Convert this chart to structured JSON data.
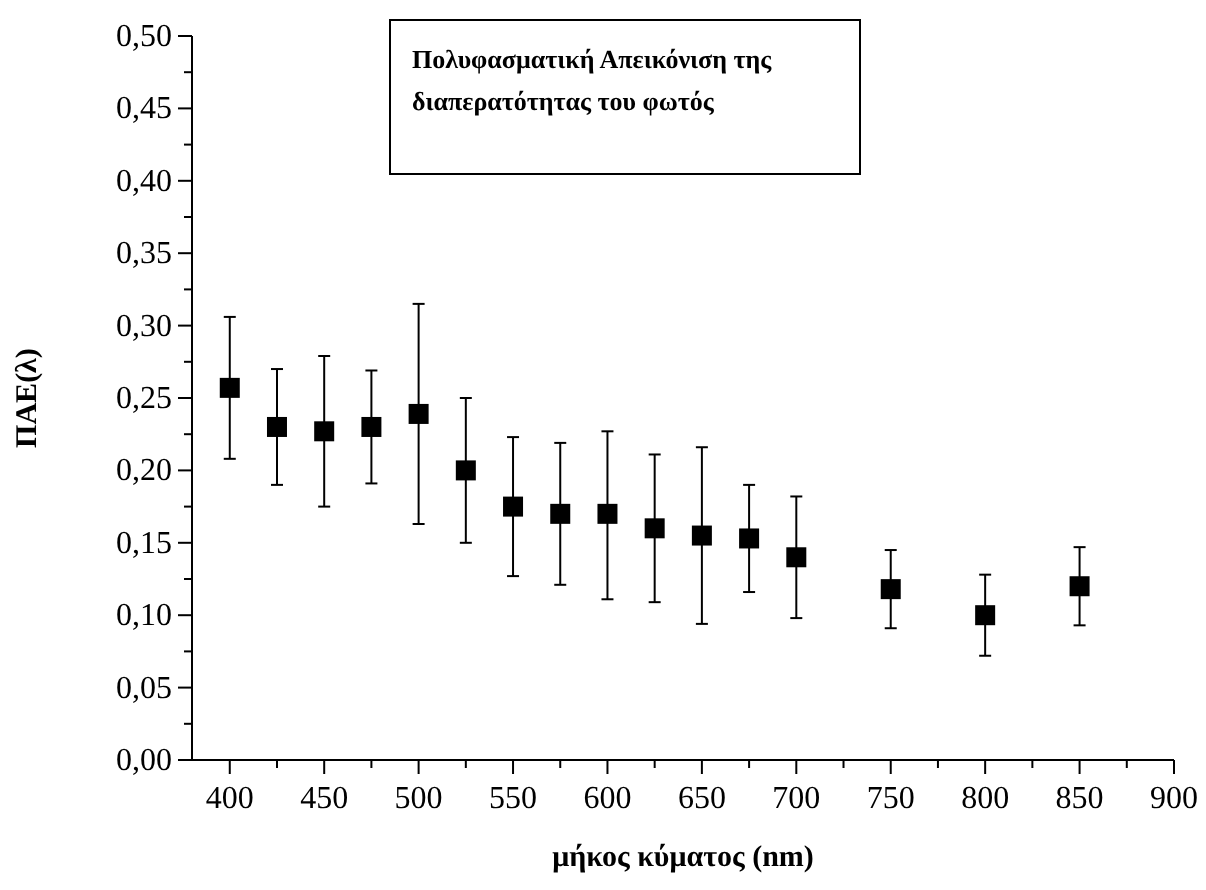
{
  "chart_data": {
    "type": "scatter",
    "title": "Πολυφασματική Απεικόνιση της διαπερατότητας του φωτός",
    "xlabel": "μήκος κύματος (nm)",
    "ylabel": "ΠΑΕ(λ)",
    "x": [
      400,
      425,
      450,
      475,
      500,
      525,
      550,
      575,
      600,
      625,
      650,
      675,
      700,
      750,
      800,
      850
    ],
    "values": [
      0.257,
      0.23,
      0.227,
      0.23,
      0.239,
      0.2,
      0.175,
      0.17,
      0.17,
      0.16,
      0.155,
      0.153,
      0.14,
      0.118,
      0.1,
      0.12
    ],
    "errors": [
      [
        0.208,
        0.306
      ],
      [
        0.19,
        0.27
      ],
      [
        0.175,
        0.279
      ],
      [
        0.191,
        0.269
      ],
      [
        0.163,
        0.315
      ],
      [
        0.15,
        0.25
      ],
      [
        0.127,
        0.223
      ],
      [
        0.121,
        0.219
      ],
      [
        0.111,
        0.227
      ],
      [
        0.109,
        0.211
      ],
      [
        0.094,
        0.216
      ],
      [
        0.116,
        0.19
      ],
      [
        0.098,
        0.182
      ],
      [
        0.091,
        0.145
      ],
      [
        0.072,
        0.128
      ],
      [
        0.093,
        0.147
      ]
    ],
    "color": "#000000",
    "marker": "square",
    "grid": false,
    "xlim": [
      380,
      900
    ],
    "xticks": [
      400,
      {
        "value": 425,
        "label": null
      },
      450,
      {
        "value": 475,
        "label": null
      },
      500,
      {
        "value": 525,
        "label": null
      },
      550,
      {
        "value": 575,
        "label": null
      },
      600,
      {
        "value": 625,
        "label": null
      },
      650,
      {
        "value": 675,
        "label": null
      },
      700,
      {
        "value": 725,
        "label": null
      },
      750,
      {
        "value": 775,
        "label": null
      },
      800,
      {
        "value": 825,
        "label": null
      },
      850,
      {
        "value": 875,
        "label": null
      },
      900
    ],
    "ylim": [
      0,
      0.5
    ],
    "yticks": [
      {
        "value": 0,
        "label": "0,00"
      },
      {
        "value": 0.025,
        "label": null
      },
      {
        "value": 0.05,
        "label": "0,05"
      },
      {
        "value": 0.075,
        "label": null
      },
      {
        "value": 0.1,
        "label": "0,10"
      },
      {
        "value": 0.125,
        "label": null
      },
      {
        "value": 0.15,
        "label": "0,15"
      },
      {
        "value": 0.175,
        "label": null
      },
      {
        "value": 0.2,
        "label": "0,20"
      },
      {
        "value": 0.225,
        "label": null
      },
      {
        "value": 0.25,
        "label": "0,25"
      },
      {
        "value": 0.275,
        "label": null
      },
      {
        "value": 0.3,
        "label": "0,30"
      },
      {
        "value": 0.325,
        "label": null
      },
      {
        "value": 0.35,
        "label": "0,35"
      },
      {
        "value": 0.375,
        "label": null
      },
      {
        "value": 0.4,
        "label": "0,40"
      },
      {
        "value": 0.425,
        "label": null
      },
      {
        "value": 0.45,
        "label": "0,45"
      },
      {
        "value": 0.475,
        "label": null
      },
      {
        "value": 0.5,
        "label": "0,50"
      }
    ]
  }
}
